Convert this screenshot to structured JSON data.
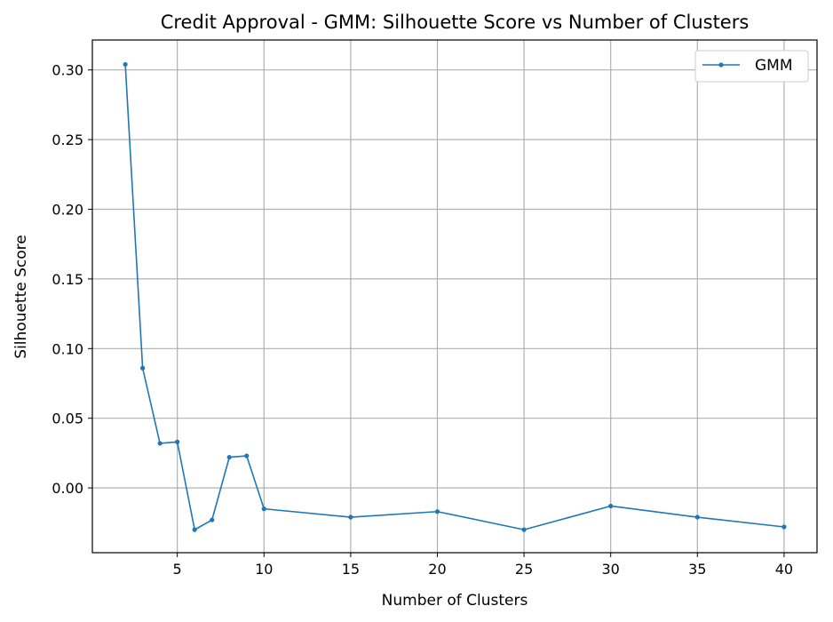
{
  "chart_data": {
    "type": "line",
    "title": "Credit Approval - GMM: Silhouette Score vs Number of Clusters",
    "xlabel": "Number of Clusters",
    "ylabel": "Silhouette Score",
    "xlim": [
      0.1,
      41.9
    ],
    "ylim": [
      -0.0465,
      0.3215
    ],
    "xticks": [
      "5",
      "10",
      "15",
      "20",
      "25",
      "30",
      "35",
      "40"
    ],
    "yticks": [
      "0.00",
      "0.05",
      "0.10",
      "0.15",
      "0.20",
      "0.25",
      "0.30"
    ],
    "grid": true,
    "legend_position": "top-right",
    "series": [
      {
        "name": "GMM",
        "color": "#1f77b4",
        "marker": "circle",
        "x": [
          2,
          3,
          4,
          5,
          6,
          7,
          8,
          9,
          10,
          15,
          20,
          25,
          30,
          35,
          40
        ],
        "y": [
          0.304,
          0.086,
          0.032,
          0.033,
          -0.03,
          -0.023,
          0.022,
          0.023,
          -0.015,
          -0.021,
          -0.017,
          -0.03,
          -0.013,
          -0.021,
          -0.028
        ]
      }
    ]
  }
}
